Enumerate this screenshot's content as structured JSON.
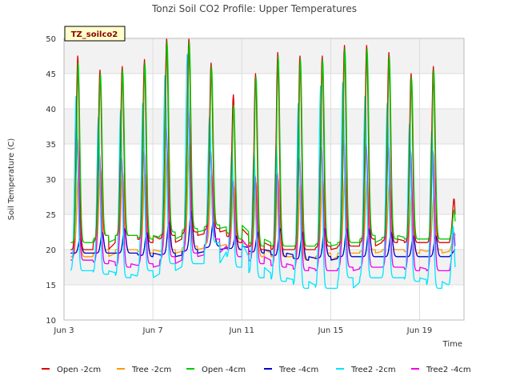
{
  "chart_data": {
    "type": "line",
    "title": "Tonzi Soil CO2 Profile: Upper Temperatures",
    "xlabel": "Time",
    "ylabel": "Soil Temperature (C)",
    "site_badge": "TZ_soilco2",
    "xlim": [
      3,
      21
    ],
    "ylim": [
      10,
      50
    ],
    "yticks": [
      10,
      15,
      20,
      25,
      30,
      35,
      40,
      45,
      50
    ],
    "xticks": [
      {
        "value": 3,
        "label": "Jun 3"
      },
      {
        "value": 7,
        "label": "Jun 7"
      },
      {
        "value": 11,
        "label": "Jun 11"
      },
      {
        "value": 15,
        "label": "Jun 15"
      },
      {
        "value": 19,
        "label": "Jun 19"
      }
    ],
    "grid": true,
    "legend_position": "bottom",
    "x_start": 3.3,
    "x_end": 20.6,
    "series": [
      {
        "name": "Open -2cm",
        "color": "#dd0000",
        "phase": 0.62,
        "day_max": [
          47.5,
          45.5,
          46,
          47,
          50,
          50,
          46.5,
          42,
          45,
          48,
          47.5,
          47.5,
          49,
          49,
          48,
          45,
          46
        ],
        "day_min": [
          20,
          22,
          22,
          21,
          22,
          22.5,
          23,
          21,
          20,
          20,
          20,
          20.5,
          20.5,
          21.5,
          21,
          21,
          21
        ],
        "end_value": 25
      },
      {
        "name": "Tree -2cm",
        "color": "#ff9900",
        "phase": 0.64,
        "day_max": [
          30.5,
          31.5,
          31,
          31,
          34,
          35.5,
          31,
          29,
          29.5,
          30,
          29.5,
          30,
          30.5,
          30,
          29.5,
          28,
          27.5
        ],
        "day_min": [
          19,
          20,
          20,
          19.5,
          20,
          20.5,
          21,
          20,
          19,
          19,
          18.5,
          19.5,
          19.5,
          20,
          20,
          19.5,
          20
        ],
        "end_value": 22
      },
      {
        "name": "Open -4cm",
        "color": "#00cc00",
        "phase": 0.64,
        "day_max": [
          46.5,
          45,
          45.5,
          46.5,
          49.5,
          49.5,
          46,
          40.5,
          44.5,
          47.5,
          47,
          47,
          48.5,
          48.5,
          47.5,
          44.5,
          45.5
        ],
        "day_min": [
          21,
          22,
          22,
          21.5,
          22.5,
          23,
          23.5,
          21.5,
          20.5,
          20.5,
          20.5,
          21,
          21,
          22,
          21.5,
          21.5,
          21.5
        ],
        "end_value": 24
      },
      {
        "name": "Tree -4cm",
        "color": "#0000cc",
        "phase": 0.72,
        "day_max": [
          21.5,
          22.5,
          23,
          22.5,
          24,
          25.5,
          24,
          22,
          22.5,
          23,
          22.5,
          23,
          23,
          23,
          22.5,
          22,
          22
        ],
        "day_min": [
          19.5,
          19.5,
          19.5,
          19,
          19.5,
          20,
          20.5,
          20,
          19.5,
          19,
          18.5,
          19,
          19,
          19,
          19,
          19,
          19
        ],
        "end_value": 20
      },
      {
        "name": "Tree2 -2cm",
        "color": "#00e5ff",
        "phase": 0.55,
        "day_max": [
          42,
          39,
          40,
          41,
          45,
          48,
          39,
          34,
          34,
          35,
          41,
          43.5,
          44,
          42,
          41,
          38,
          37
        ],
        "day_min": [
          17,
          16.5,
          16,
          17,
          18,
          18,
          21,
          17.5,
          16,
          15.5,
          14.5,
          14.5,
          16,
          16,
          16,
          15.5,
          14.5
        ],
        "end_value": 17.5
      },
      {
        "name": "Tree2 -4cm",
        "color": "#ee00ee",
        "phase": 0.6,
        "day_max": [
          36,
          33.5,
          33,
          34,
          37.5,
          40,
          34,
          30,
          30.5,
          31,
          33,
          34.5,
          35.5,
          35,
          35,
          34,
          34
        ],
        "day_min": [
          18.5,
          18,
          17.5,
          18,
          19,
          19.5,
          21.5,
          19,
          18,
          17.5,
          17,
          17,
          17.5,
          17.5,
          17.5,
          17,
          17
        ],
        "end_value": 20.5
      }
    ]
  }
}
